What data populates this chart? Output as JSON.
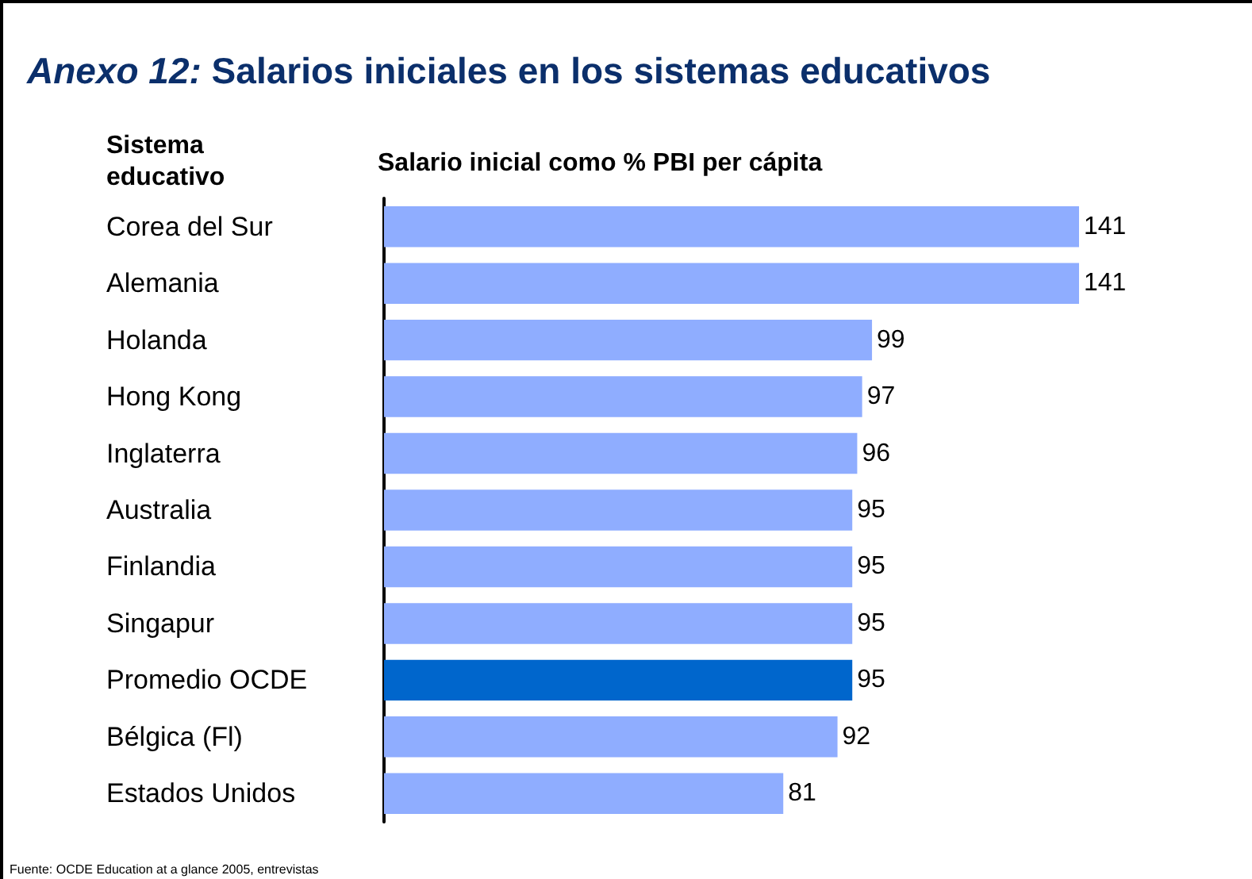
{
  "chart_data": {
    "type": "bar",
    "orientation": "horizontal",
    "title": "Anexo 12: Salarios iniciales en los sistemas educativos",
    "ylabel": "Sistema educativo",
    "xlabel": "Salario inicial como % PBI per cápita",
    "categories": [
      "Corea del Sur",
      "Alemania",
      "Holanda",
      "Hong Kong",
      "Inglaterra",
      "Australia",
      "Finlandia",
      "Singapur",
      "Promedio OCDE",
      "Bélgica (Fl)",
      "Estados Unidos"
    ],
    "values": [
      141,
      141,
      99,
      97,
      96,
      95,
      95,
      95,
      95,
      92,
      81
    ],
    "colors": [
      "#8fadff",
      "#8fadff",
      "#8fadff",
      "#8fadff",
      "#8fadff",
      "#8fadff",
      "#8fadff",
      "#8fadff",
      "#0066cc",
      "#8fadff",
      "#8fadff"
    ],
    "data_labels": true,
    "annotations": [
      "Fuente: OCDE Education at a glance 2005, entrevistas"
    ]
  }
}
